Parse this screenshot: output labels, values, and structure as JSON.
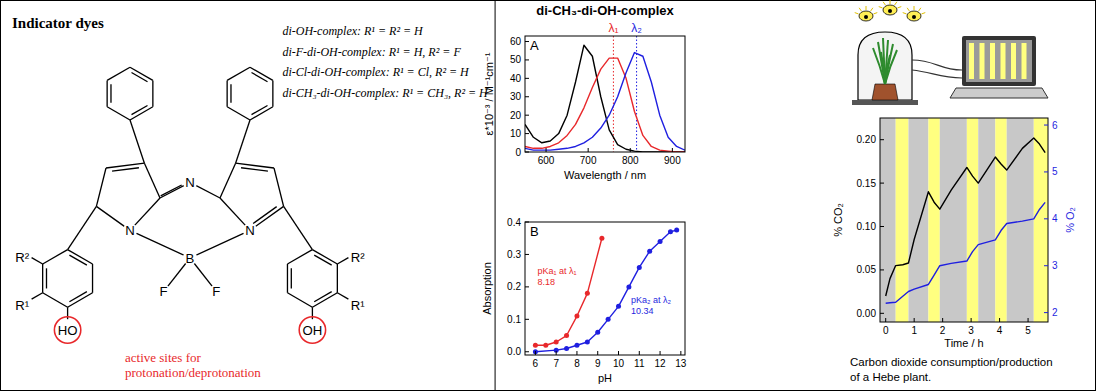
{
  "structure": {
    "title": "Indicator dyes",
    "variants": [
      "di-OH-complex: R¹ = R² = H",
      "di-F-di-OH-complex: R¹ = H, R² = F",
      "di-Cl-di-OH-complex: R¹ = Cl, R² = H",
      "di-CH₃-di-OH-complex: R¹ = CH₃, R² = H"
    ],
    "atoms": [
      "N",
      "N",
      "N",
      "B",
      "F",
      "F",
      "R²",
      "R¹",
      "R²",
      "R¹",
      "HO",
      "OH"
    ],
    "note": [
      "active sites for",
      "protonation/deprotonation"
    ]
  },
  "chart_data": [
    {
      "type": "line",
      "title": "di-CH₃-di-OH-complex",
      "panel_label": "A",
      "x_label": "Wavelength / nm",
      "y_label": "ε*10⁻³ / M⁻¹cm⁻¹",
      "x": [
        550,
        570,
        590,
        610,
        630,
        650,
        670,
        690,
        710,
        730,
        750,
        770,
        790,
        810,
        830,
        850,
        870,
        890,
        910,
        930
      ],
      "xlim": [
        550,
        930
      ],
      "xticks": [
        600,
        700,
        800,
        900
      ],
      "ylim": [
        0,
        63
      ],
      "yticks": [
        0,
        10,
        20,
        30,
        40,
        50,
        60
      ],
      "grid": false,
      "line_style": "solid",
      "series": [
        {
          "color": "#000000",
          "values": [
            15,
            8,
            5,
            6,
            10,
            20,
            38,
            58,
            52,
            30,
            12,
            4,
            1.5,
            0.5,
            0,
            0,
            0,
            0,
            0,
            0
          ]
        },
        {
          "color": "#e8282b",
          "values": [
            3,
            2,
            2,
            3,
            5,
            9,
            15,
            24,
            35,
            45,
            51,
            51,
            40,
            22,
            9,
            3,
            1,
            0.5,
            0,
            0
          ]
        },
        {
          "color": "#1f1fe0",
          "values": [
            2,
            1,
            1,
            1,
            1.5,
            2,
            3,
            5,
            8,
            13,
            20,
            30,
            43,
            54,
            52,
            38,
            20,
            8,
            3,
            1
          ]
        }
      ],
      "annotations": [
        {
          "label": "λ₁",
          "x": 760,
          "color": "#e8282b",
          "line_style": "dotted"
        },
        {
          "label": "λ₂",
          "x": 815,
          "color": "#1f1fe0",
          "line_style": "dotted"
        }
      ]
    },
    {
      "type": "scatter",
      "panel_label": "B",
      "x_label": "pH",
      "y_label": "Absorption",
      "xlim": [
        5.5,
        13.2
      ],
      "xticks": [
        6,
        7,
        8,
        9,
        10,
        11,
        12,
        13
      ],
      "ylim": [
        -0.01,
        0.4
      ],
      "yticks": [
        {
          "value": 0,
          "label": "0.0"
        },
        0.1,
        0.2,
        0.3,
        0.4
      ],
      "grid": false,
      "series": [
        {
          "color": "#e8282b",
          "marker": "circle",
          "line_style": "solid",
          "x": [
            6,
            6.5,
            7,
            7.5,
            8,
            8.5,
            9.2
          ],
          "values": [
            0.02,
            0.02,
            0.03,
            0.05,
            0.11,
            0.18,
            0.35
          ]
        },
        {
          "color": "#1f1fe0",
          "marker": "circle",
          "line_style": "solid",
          "x": [
            6,
            7,
            7.5,
            8,
            8.5,
            9,
            9.5,
            10,
            10.5,
            11,
            11.5,
            12,
            12.5,
            12.8
          ],
          "values": [
            0,
            0.005,
            0.01,
            0.02,
            0.03,
            0.06,
            0.1,
            0.14,
            0.2,
            0.26,
            0.31,
            0.34,
            0.37,
            0.375
          ]
        }
      ],
      "annotations": [
        {
          "text": "pKa₁ at λ₁",
          "value": 8.18,
          "color": "#e8282b"
        },
        {
          "text": "pKa₂ at λ₂",
          "value": 10.34,
          "color": "#1f1fe0"
        }
      ]
    },
    {
      "type": "line",
      "x_label": "Time / h",
      "y_label": "% CO₂",
      "y2_label": "% O₂",
      "x": [
        0,
        0.15,
        0.35,
        0.6,
        0.8,
        1.0,
        1.5,
        1.7,
        1.9,
        2.3,
        2.85,
        3.05,
        3.25,
        3.85,
        4.05,
        4.25,
        4.8,
        5.2,
        5.4,
        5.6
      ],
      "xlim": [
        -0.2,
        5.7
      ],
      "xticks": [
        0,
        1,
        2,
        3,
        4,
        5
      ],
      "ylim": [
        -0.01,
        0.225
      ],
      "yticks": [
        {
          "value": 0,
          "label": "0.00"
        },
        0.05,
        {
          "value": 0.1,
          "label": "0.10"
        },
        0.15,
        {
          "value": 0.2,
          "label": "0.20"
        }
      ],
      "y2lim": [
        1.8,
        6.15
      ],
      "y2ticks": [
        2,
        3,
        4,
        5,
        6
      ],
      "grid": false,
      "line_style": "solid",
      "series": [
        {
          "color": "#000000",
          "values": [
            0.02,
            0.04,
            0.055,
            0.056,
            0.058,
            0.085,
            0.14,
            0.128,
            0.12,
            0.142,
            0.168,
            0.158,
            0.15,
            0.18,
            0.172,
            0.165,
            0.19,
            0.202,
            0.195,
            0.185
          ]
        },
        {
          "color": "#1f1fe0",
          "axis": "y2",
          "values": [
            2.2,
            2.21,
            2.22,
            2.35,
            2.45,
            2.5,
            2.6,
            2.8,
            3.0,
            3.05,
            3.1,
            3.3,
            3.45,
            3.55,
            3.75,
            3.9,
            3.95,
            4.0,
            4.2,
            4.35
          ]
        }
      ],
      "periods": [
        {
          "from": -0.2,
          "to": 0.35,
          "color": "#c8c8c8"
        },
        {
          "from": 0.35,
          "to": 0.8,
          "color": "#ffff80"
        },
        {
          "from": 0.8,
          "to": 1.5,
          "color": "#c8c8c8"
        },
        {
          "from": 1.5,
          "to": 1.9,
          "color": "#ffff80"
        },
        {
          "from": 1.9,
          "to": 2.85,
          "color": "#c8c8c8"
        },
        {
          "from": 2.85,
          "to": 3.25,
          "color": "#ffff80"
        },
        {
          "from": 3.25,
          "to": 3.85,
          "color": "#c8c8c8"
        },
        {
          "from": 3.85,
          "to": 4.25,
          "color": "#ffff80"
        },
        {
          "from": 4.25,
          "to": 5.2,
          "color": "#c8c8c8"
        },
        {
          "from": 5.2,
          "to": 5.7,
          "color": "#ffff80"
        }
      ],
      "caption": [
        "Carbon dioxide consumption/production",
        "of a Hebe plant."
      ]
    }
  ]
}
